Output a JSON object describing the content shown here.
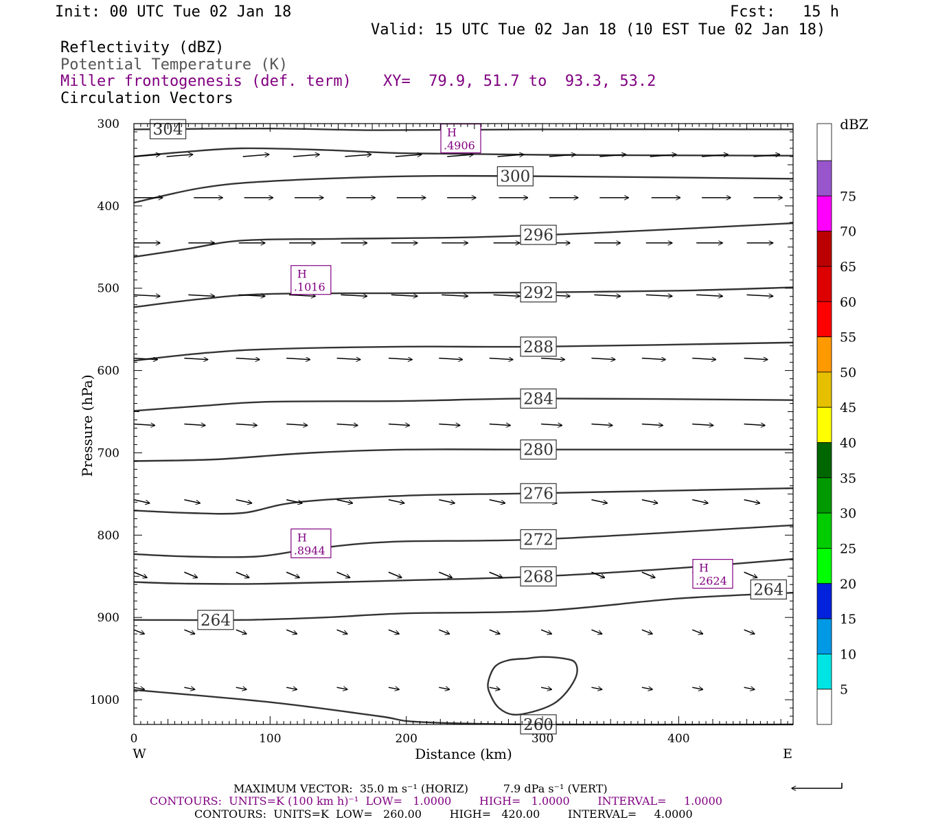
{
  "header": {
    "init": "Init: 00 UTC Tue 02 Jan 18",
    "fcst": "Fcst:   15 h",
    "valid": "Valid: 15 UTC Tue 02 Jan 18 (10 EST Tue 02 Jan 18)",
    "field1": "Reflectivity (dBZ)",
    "field2": "Potential Temperature (K)",
    "field3": "Miller frontogenesis (def. term)",
    "xy": "XY=  79.9, 51.7 to  93.3, 53.2",
    "field4": "Circulation Vectors"
  },
  "colors": {
    "black": "#000000",
    "gray": "#555555",
    "purple": "#800080",
    "field2": "#555555",
    "field3": "#800080"
  },
  "footer": {
    "max_vector_line": "MAXIMUM VECTOR:  35.0 m s⁻¹ (HORIZ)          7.9 dPa s⁻¹ (VERT)",
    "contours1": "CONTOURS:  UNITS=K (100 km h)⁻¹  LOW=   1.0000        HIGH=   1.0000        INTERVAL=     1.0000",
    "contours2": "CONTOURS:  UNITS=K  LOW=   260.00        HIGH=   420.00        INTERVAL=     4.0000"
  },
  "chart_data": {
    "type": "cross-section",
    "xlabel": "Distance (km)",
    "ylabel": "Pressure (hPa)",
    "xlim": [
      0,
      484
    ],
    "ylim": [
      1030,
      300
    ],
    "x_ticks": [
      0,
      100,
      200,
      300,
      400
    ],
    "y_ticks": [
      300,
      400,
      500,
      600,
      700,
      800,
      900,
      1000
    ],
    "x_tick_labels": [
      "0",
      "100",
      "200",
      "300",
      "400"
    ],
    "y_tick_labels": [
      "300",
      "400",
      "500",
      "600",
      "700",
      "800",
      "900",
      "1000"
    ],
    "left_end_label": "W",
    "right_end_label": "E",
    "colorbar": {
      "unit_label": "dBZ",
      "labels": [
        "5",
        "10",
        "15",
        "20",
        "25",
        "30",
        "35",
        "40",
        "45",
        "50",
        "55",
        "60",
        "65",
        "70",
        "75"
      ],
      "colors": [
        "#ffffff",
        "#00e4e4",
        "#0099e6",
        "#0022dd",
        "#00ff00",
        "#00cc00",
        "#009900",
        "#006600",
        "#ffff00",
        "#e6c000",
        "#ff9900",
        "#ff0000",
        "#dd0000",
        "#bb0000",
        "#ff00ff",
        "#9955cc",
        "#ffffff"
      ]
    },
    "theta_contours": [
      {
        "label": "304",
        "points": [
          [
            0,
            307
          ],
          [
            100,
            306
          ],
          [
            180,
            308
          ],
          [
            300,
            307
          ],
          [
            484,
            307
          ]
        ]
      },
      {
        "label": "",
        "points": [
          [
            0,
            340
          ],
          [
            40,
            334
          ],
          [
            80,
            330
          ],
          [
            140,
            332
          ],
          [
            200,
            336
          ],
          [
            300,
            338
          ],
          [
            484,
            339
          ]
        ]
      },
      {
        "label": "300",
        "points": [
          [
            0,
            396
          ],
          [
            50,
            378
          ],
          [
            100,
            370
          ],
          [
            200,
            364
          ],
          [
            300,
            364
          ],
          [
            484,
            367
          ]
        ]
      },
      {
        "label": "296",
        "points": [
          [
            0,
            462
          ],
          [
            40,
            452
          ],
          [
            80,
            442
          ],
          [
            150,
            440
          ],
          [
            250,
            438
          ],
          [
            350,
            432
          ],
          [
            484,
            421
          ]
        ]
      },
      {
        "label": "292",
        "points": [
          [
            0,
            523
          ],
          [
            50,
            513
          ],
          [
            100,
            507
          ],
          [
            200,
            506
          ],
          [
            300,
            505
          ],
          [
            400,
            503
          ],
          [
            484,
            499
          ]
        ]
      },
      {
        "label": "288",
        "points": [
          [
            0,
            588
          ],
          [
            50,
            579
          ],
          [
            100,
            574
          ],
          [
            200,
            571
          ],
          [
            300,
            571
          ],
          [
            484,
            566
          ]
        ]
      },
      {
        "label": "284",
        "points": [
          [
            0,
            649
          ],
          [
            50,
            643
          ],
          [
            100,
            638
          ],
          [
            200,
            637
          ],
          [
            300,
            634
          ],
          [
            484,
            636
          ]
        ]
      },
      {
        "label": "280",
        "points": [
          [
            0,
            710
          ],
          [
            60,
            708
          ],
          [
            130,
            700
          ],
          [
            200,
            696
          ],
          [
            300,
            696
          ],
          [
            484,
            696
          ]
        ]
      },
      {
        "label": "276",
        "points": [
          [
            0,
            770
          ],
          [
            40,
            773
          ],
          [
            80,
            773
          ],
          [
            120,
            760
          ],
          [
            200,
            752
          ],
          [
            300,
            749
          ],
          [
            484,
            743
          ]
        ]
      },
      {
        "label": "272",
        "points": [
          [
            0,
            823
          ],
          [
            40,
            826
          ],
          [
            90,
            826
          ],
          [
            130,
            817
          ],
          [
            190,
            808
          ],
          [
            300,
            805
          ],
          [
            484,
            788
          ]
        ]
      },
      {
        "label": "268",
        "points": [
          [
            0,
            857
          ],
          [
            40,
            859
          ],
          [
            100,
            859
          ],
          [
            200,
            855
          ],
          [
            300,
            850
          ],
          [
            400,
            840
          ],
          [
            484,
            829
          ]
        ]
      },
      {
        "label": "264",
        "points": [
          [
            0,
            903
          ],
          [
            80,
            903
          ],
          [
            140,
            900
          ],
          [
            200,
            895
          ],
          [
            300,
            892
          ],
          [
            400,
            877
          ],
          [
            484,
            870
          ]
        ]
      },
      {
        "label": "260",
        "points": [
          [
            0,
            988
          ],
          [
            100,
            1003
          ],
          [
            180,
            1020
          ],
          [
            210,
            1027
          ],
          [
            300,
            1030
          ],
          [
            484,
            1030
          ]
        ]
      }
    ],
    "theta_closed_260": [
      [
        288,
        950
      ],
      [
        300,
        948
      ],
      [
        316,
        950
      ],
      [
        324,
        955
      ],
      [
        325,
        970
      ],
      [
        318,
        990
      ],
      [
        308,
        1005
      ],
      [
        292,
        1015
      ],
      [
        278,
        1018
      ],
      [
        268,
        1010
      ],
      [
        262,
        995
      ],
      [
        260,
        980
      ],
      [
        265,
        960
      ],
      [
        275,
        952
      ]
    ],
    "frontogenesis_maxima": [
      {
        "symbol": "H",
        "value": ".4906",
        "x": 240,
        "p": 318
      },
      {
        "symbol": "H",
        "value": ".1016",
        "x": 130,
        "p": 490
      },
      {
        "symbol": "H",
        "value": ".8944",
        "x": 130,
        "p": 810
      },
      {
        "symbol": "H",
        "value": ".2624",
        "x": 425,
        "p": 847
      }
    ],
    "vector_rows": [
      {
        "p": 340,
        "dx": 20,
        "dp": -3,
        "xs": [
          0,
          24,
          80,
          117,
          155,
          192,
          230,
          267,
          305,
          342,
          379,
          417,
          455
        ]
      },
      {
        "p": 390,
        "dx": 22,
        "dp": 0,
        "xs": [
          0,
          44,
          81,
          118,
          156,
          193,
          230,
          268,
          305,
          342,
          380,
          417,
          455
        ]
      },
      {
        "p": 445,
        "dx": 20,
        "dp": 0,
        "xs": [
          0,
          40,
          77,
          114,
          152,
          189,
          226,
          264,
          301,
          338,
          376,
          413,
          450
        ]
      },
      {
        "p": 508,
        "dx": 20,
        "dp": 2,
        "xs": [
          0,
          40,
          77,
          114,
          152,
          189,
          226,
          264,
          301,
          338,
          376,
          413,
          450
        ]
      },
      {
        "p": 585,
        "dx": 18,
        "dp": 2,
        "xs": [
          0,
          37,
          75,
          112,
          149,
          187,
          224,
          261,
          299,
          336,
          373,
          410,
          448
        ]
      },
      {
        "p": 665,
        "dx": 16,
        "dp": 2,
        "xs": [
          0,
          37,
          75,
          112,
          149,
          187,
          224,
          261,
          299,
          336,
          373,
          410,
          448
        ]
      },
      {
        "p": 757,
        "dx": 12,
        "dp": 5,
        "xs": [
          0,
          37,
          75,
          112,
          149,
          187,
          224,
          261,
          299,
          336,
          373,
          410,
          448
        ]
      },
      {
        "p": 845,
        "dx": 10,
        "dp": 8,
        "xs": [
          0,
          37,
          75,
          112,
          149,
          187,
          224,
          261,
          299,
          336,
          373,
          410,
          448
        ]
      },
      {
        "p": 915,
        "dx": 8,
        "dp": 6,
        "xs": [
          0,
          37,
          75,
          112,
          149,
          187,
          224,
          261,
          299,
          336,
          373,
          410,
          448
        ]
      },
      {
        "p": 985,
        "dx": 8,
        "dp": 3,
        "xs": [
          0,
          37,
          75,
          112,
          149,
          187,
          224,
          261,
          299,
          336,
          373,
          410,
          448
        ]
      }
    ],
    "max_vector_reference": {
      "horiz_ms": 35.0,
      "vert_dpas": 7.9
    }
  }
}
